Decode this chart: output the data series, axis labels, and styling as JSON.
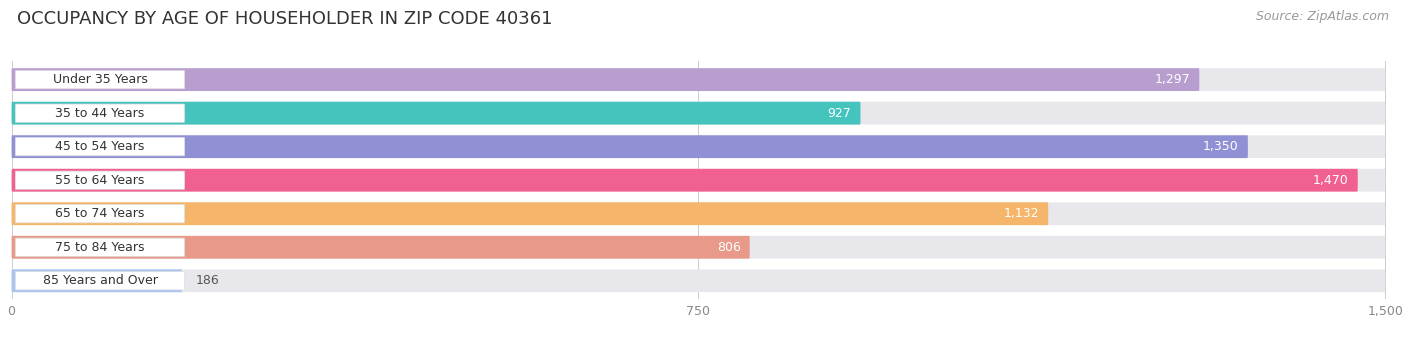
{
  "title": "OCCUPANCY BY AGE OF HOUSEHOLDER IN ZIP CODE 40361",
  "source": "Source: ZipAtlas.com",
  "categories": [
    "Under 35 Years",
    "35 to 44 Years",
    "45 to 54 Years",
    "55 to 64 Years",
    "65 to 74 Years",
    "75 to 84 Years",
    "85 Years and Over"
  ],
  "values": [
    1297,
    927,
    1350,
    1470,
    1132,
    806,
    186
  ],
  "bar_colors": [
    "#b89ece",
    "#45c4be",
    "#9090d4",
    "#f06090",
    "#f5b56a",
    "#e8998a",
    "#a8c4f0"
  ],
  "xlim": [
    0,
    1500
  ],
  "xticks": [
    0,
    750,
    1500
  ],
  "xtick_labels": [
    "0",
    "750",
    "1,500"
  ],
  "bg_color": "#ffffff",
  "bar_bg_color": "#e8e8ec",
  "title_fontsize": 13,
  "label_fontsize": 9,
  "value_fontsize": 9,
  "source_fontsize": 9
}
